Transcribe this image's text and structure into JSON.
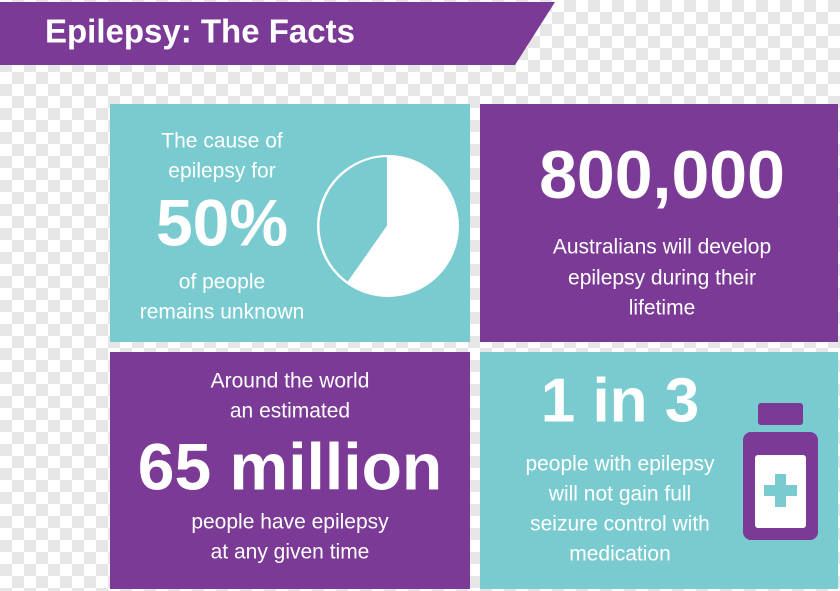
{
  "title": "Epilepsy: The Facts",
  "panels": [
    {
      "before": [
        "The cause of",
        "epilepsy for"
      ],
      "figure": "50%",
      "after": [
        "of people",
        "remains unknown"
      ]
    },
    {
      "before": [],
      "figure": "800,000",
      "after": [
        "Australians will develop",
        "epilepsy during their",
        "lifetime"
      ]
    },
    {
      "before": [
        "Around the world",
        "an estimated"
      ],
      "figure": "65 million",
      "after": [
        "people have epilepsy",
        "at any given time"
      ]
    },
    {
      "before": [],
      "figure": "1 in 3",
      "after": [
        "people with epilepsy",
        "will not gain full",
        "seizure control with",
        "medication"
      ]
    }
  ]
}
